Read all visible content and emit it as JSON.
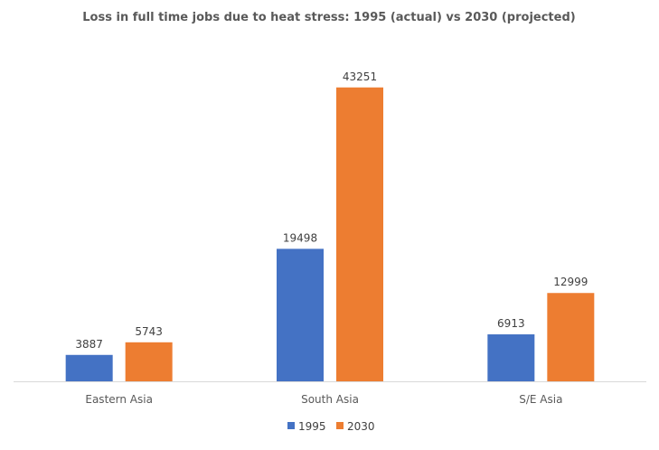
{
  "chart_data": {
    "type": "bar",
    "title": "Loss in full time jobs due to heat stress: 1995 (actual) vs 2030 (projected)",
    "xlabel": "",
    "ylabel": "",
    "categories": [
      "Eastern Asia",
      "South Asia",
      "S/E Asia"
    ],
    "series": [
      {
        "name": "1995",
        "color": "#4472C4",
        "values": [
          3887,
          19498,
          6913
        ]
      },
      {
        "name": "2030",
        "color": "#ED7D31",
        "values": [
          5743,
          43251,
          12999
        ]
      }
    ],
    "ylim": [
      0,
      50000
    ],
    "grid": false,
    "legend": "bottom-center",
    "data_labels": true
  }
}
